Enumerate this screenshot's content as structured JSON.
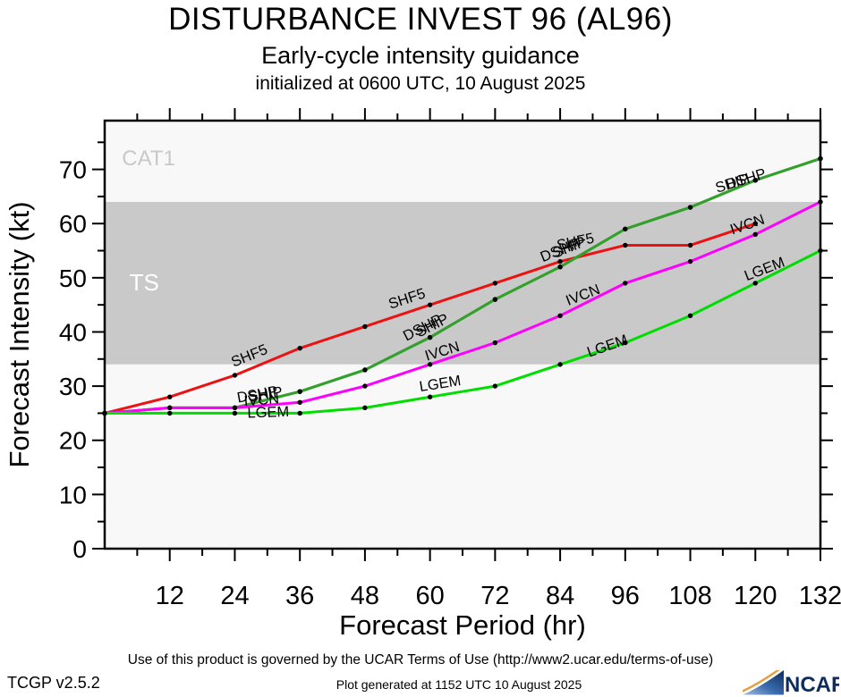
{
  "title": "DISTURBANCE INVEST 96 (AL96)",
  "subtitle": "Early-cycle intensity guidance",
  "init_line": "initialized at 0600 UTC, 10 August 2025",
  "footer": {
    "terms": "Use of this product is governed by the UCAR Terms of Use (http://www2.ucar.edu/terms-of-use)",
    "app_version": "TCGP v2.5.2",
    "generated": "Plot generated at 1152 UTC   10 August 2025",
    "logo_text": "NCAR",
    "logo_navy": "#0e2d5e",
    "logo_mid_blue": "#3a6bae",
    "logo_light_blue": "#a8c0dc",
    "logo_orange": "#e89b3c"
  },
  "chart_data": {
    "type": "line",
    "title": "DISTURBANCE INVEST 96 (AL96)",
    "xlabel": "Forecast Period (hr)",
    "ylabel": "Forecast Intensity (kt)",
    "xlim": [
      0,
      132
    ],
    "ylim": [
      0,
      79
    ],
    "grid": false,
    "legend_position": "inline-line-labels",
    "x_major_ticks": [
      12,
      24,
      36,
      48,
      60,
      72,
      84,
      96,
      108,
      120,
      132
    ],
    "x_minor_ticks": [
      6,
      18,
      30,
      42,
      54,
      66,
      78,
      90,
      102,
      114,
      126
    ],
    "y_major_ticks": [
      0,
      10,
      20,
      30,
      40,
      50,
      60,
      70
    ],
    "y_minor_ticks": [
      5,
      15,
      25,
      35,
      45,
      55,
      65,
      75
    ],
    "axis_color": "#000000",
    "dot_color": "#000000",
    "bands": [
      {
        "name": "CAT1",
        "from": 64,
        "to": 79,
        "color": "#f8f8f8",
        "label": "CAT1",
        "label_color": "#c8c8c8",
        "label_x_hr": 8.1,
        "label_y_kt": 72.1,
        "label_size": 24
      },
      {
        "name": "TS",
        "from": 34,
        "to": 64,
        "color": "#c9c9c9",
        "label": "TS",
        "label_color": "#ffffff",
        "label_x_hr": 7.3,
        "label_y_kt": 49.2,
        "label_size": 26
      },
      {
        "name": "TD",
        "from": 0,
        "to": 34,
        "color": "#f8f8f8",
        "label": "",
        "label_color": "#ffffff",
        "label_x_hr": 0,
        "label_y_kt": 0,
        "label_size": 0
      }
    ],
    "series": [
      {
        "name": "SHF5",
        "color": "#ee1111",
        "x": [
          0,
          12,
          24,
          36,
          48,
          60,
          72,
          84,
          96,
          108,
          120
        ],
        "values": [
          25,
          28,
          32,
          37,
          41,
          45,
          49,
          53,
          56,
          56,
          60
        ]
      },
      {
        "name": "DSHP",
        "color": "#33a02c",
        "x": [
          0,
          12,
          24,
          36,
          48,
          60,
          72,
          84,
          96,
          108,
          120,
          132
        ],
        "values": [
          25,
          26,
          26,
          29,
          33,
          39,
          46,
          52,
          59,
          63,
          68,
          72
        ]
      },
      {
        "name": "SHIP",
        "color": "#33a02c",
        "x": [
          0,
          12,
          24,
          36,
          48,
          60,
          72,
          84,
          96,
          108,
          120,
          132
        ],
        "values": [
          25,
          26,
          26,
          29,
          33,
          39,
          46,
          52,
          59,
          63,
          68,
          72
        ]
      },
      {
        "name": "IVCN",
        "color": "#ff00ff",
        "x": [
          0,
          12,
          24,
          36,
          48,
          60,
          72,
          84,
          96,
          108,
          120,
          132
        ],
        "values": [
          25,
          26,
          26,
          27,
          30,
          34,
          38,
          43,
          49,
          53,
          58,
          64
        ]
      },
      {
        "name": "LGEM",
        "color": "#00dd00",
        "x": [
          0,
          12,
          24,
          36,
          48,
          60,
          72,
          84,
          96,
          108,
          120,
          132
        ],
        "values": [
          25,
          25,
          25,
          25,
          26,
          28,
          30,
          34,
          38,
          43,
          49,
          55
        ]
      }
    ],
    "line_labels": [
      {
        "text": "SHF5",
        "hr": 27.0,
        "kt": 34.8,
        "angle": -22
      },
      {
        "text": "SHF5",
        "hr": 56.0,
        "kt": 45.3,
        "angle": -18
      },
      {
        "text": "SHF5",
        "hr": 87.0,
        "kt": 55.8,
        "angle": -12
      },
      {
        "text": "DSHP",
        "hr": 28.3,
        "kt": 27.6,
        "angle": -10
      },
      {
        "text": "SHIP",
        "hr": 29.8,
        "kt": 27.6,
        "angle": -10
      },
      {
        "text": "DSHP",
        "hr": 59.0,
        "kt": 40.0,
        "angle": -27
      },
      {
        "text": "SHIP",
        "hr": 60.8,
        "kt": 40.4,
        "angle": -27
      },
      {
        "text": "DSHP",
        "hr": 84.3,
        "kt": 54.3,
        "angle": -22
      },
      {
        "text": "SHIP",
        "hr": 86.0,
        "kt": 54.8,
        "angle": -22
      },
      {
        "text": "SHIP",
        "hr": 116.0,
        "kt": 66.6,
        "angle": -17
      },
      {
        "text": "DSHP",
        "hr": 118.5,
        "kt": 67.4,
        "angle": -17
      },
      {
        "text": "IVCN",
        "hr": 29.0,
        "kt": 26.6,
        "angle": -5
      },
      {
        "text": "IVCN",
        "hr": 62.5,
        "kt": 35.6,
        "angle": -17
      },
      {
        "text": "IVCN",
        "hr": 88.5,
        "kt": 46.0,
        "angle": -21
      },
      {
        "text": "IVCN",
        "hr": 118.8,
        "kt": 59.0,
        "angle": -19
      },
      {
        "text": "LGEM",
        "hr": 30.2,
        "kt": 24.3,
        "angle": -2
      },
      {
        "text": "LGEM",
        "hr": 62.0,
        "kt": 29.6,
        "angle": -9
      },
      {
        "text": "LGEM",
        "hr": 93.0,
        "kt": 36.6,
        "angle": -19
      },
      {
        "text": "LGEM",
        "hr": 122.0,
        "kt": 50.8,
        "angle": -21
      }
    ]
  }
}
